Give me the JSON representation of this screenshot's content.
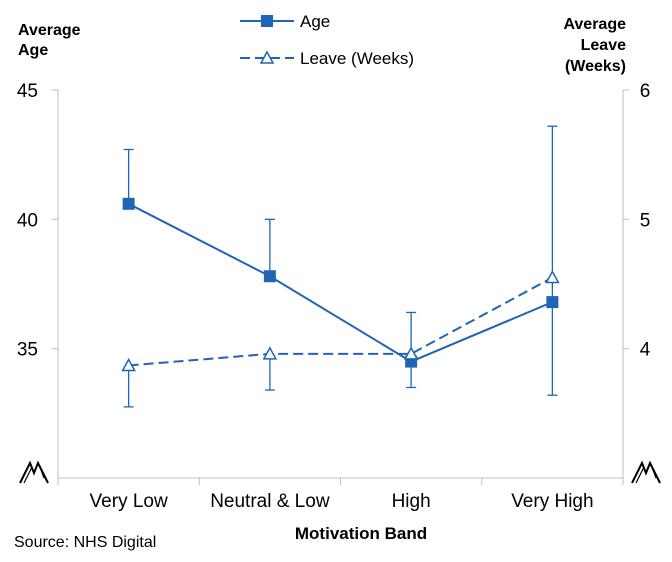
{
  "chart_data": {
    "type": "line",
    "categories": [
      "Very Low",
      "Neutral & Low",
      "High",
      "Very High"
    ],
    "xlabel": "Motivation Band",
    "ylabel_left": [
      "Average",
      "Age"
    ],
    "ylabel_right": [
      "Average",
      "Leave",
      "(Weeks)"
    ],
    "y_left": {
      "ticks": [
        35,
        40,
        45
      ],
      "range": [
        30,
        45
      ],
      "axis_break": true
    },
    "y_right": {
      "ticks": [
        4,
        5,
        6
      ],
      "range": [
        3,
        6
      ],
      "axis_break": true
    },
    "legend_position": "top",
    "grid": false,
    "series": [
      {
        "name": "Age",
        "axis": "left",
        "marker": "square-filled",
        "line": "solid",
        "values": [
          40.6,
          37.8,
          34.5,
          36.8
        ],
        "error_low": [
          null,
          37.8,
          33.5,
          33.2
        ],
        "error_high": [
          42.7,
          40.0,
          36.4,
          43.6
        ]
      },
      {
        "name": "Leave (Weeks)",
        "axis": "right",
        "marker": "triangle-open",
        "line": "dashed",
        "values": [
          3.87,
          3.96,
          3.96,
          4.55
        ],
        "error_low": [
          3.55,
          3.68,
          null,
          null
        ],
        "error_high": [
          null,
          null,
          null,
          null
        ]
      }
    ]
  },
  "source": "Source: NHS Digital",
  "colors": {
    "series": "#1f65b6",
    "axis": "#bfbfbf",
    "text": "#000000"
  }
}
